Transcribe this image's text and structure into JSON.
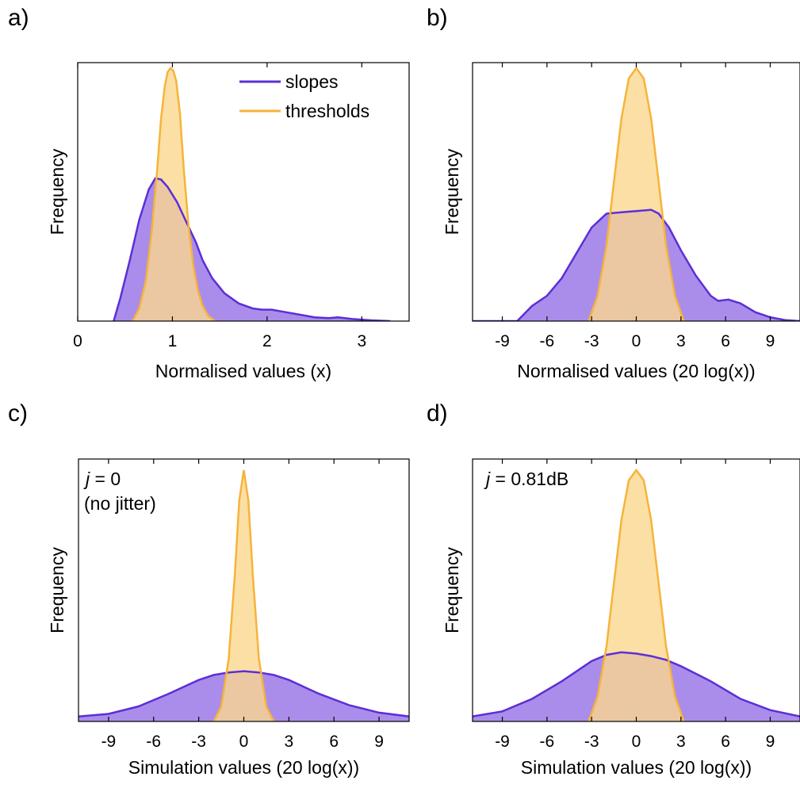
{
  "figure": {
    "panels": [
      {
        "letter": "a)",
        "xlabel": "Normalised values (x)",
        "ylabel": "Frequency",
        "annotation": null
      },
      {
        "letter": "b)",
        "xlabel": "Normalised values (20 log(x))",
        "ylabel": "Frequency",
        "annotation": null
      },
      {
        "letter": "c)",
        "xlabel": "Simulation values (20 log(x))",
        "ylabel": "Frequency",
        "annotation": {
          "symbol": "j",
          "rest": " = 0",
          "line2": "(no jitter)"
        }
      },
      {
        "letter": "d)",
        "xlabel": "Simulation values (20 log(x))",
        "ylabel": "Frequency",
        "annotation": {
          "symbol": "j",
          "rest": " = 0.81dB",
          "line2": ""
        }
      }
    ],
    "legend": {
      "placement": "top-right of panel a",
      "entries": [
        "slopes",
        "thresholds"
      ]
    },
    "colors": {
      "slopes_line": "#5b2fd6",
      "slopes_fill": "#9b79e8",
      "thresholds_line": "#f5b43a",
      "thresholds_fill": "#fbd78f",
      "overlap_fill": "#c7938a"
    }
  },
  "chart_data": [
    {
      "type": "area",
      "panel": "a",
      "xlim": [
        0,
        3.5
      ],
      "ylim": [
        0,
        1
      ],
      "xticks": [
        0,
        1,
        2,
        3
      ],
      "xlabel": "Normalised values (x)",
      "ylabel": "Frequency",
      "series": [
        {
          "name": "slopes",
          "x": [
            0.38,
            0.45,
            0.55,
            0.65,
            0.75,
            0.82,
            0.88,
            0.95,
            1.05,
            1.15,
            1.25,
            1.32,
            1.42,
            1.55,
            1.7,
            1.85,
            1.95,
            2.05,
            2.2,
            2.35,
            2.5,
            2.65,
            2.75,
            2.9,
            3.1,
            3.3
          ],
          "y": [
            0.0,
            0.09,
            0.24,
            0.4,
            0.52,
            0.565,
            0.56,
            0.53,
            0.47,
            0.39,
            0.31,
            0.24,
            0.17,
            0.11,
            0.07,
            0.05,
            0.045,
            0.045,
            0.035,
            0.025,
            0.015,
            0.012,
            0.015,
            0.008,
            0.003,
            0.0
          ]
        },
        {
          "name": "thresholds",
          "x": [
            0.58,
            0.65,
            0.72,
            0.78,
            0.84,
            0.88,
            0.92,
            0.95,
            0.98,
            1.01,
            1.04,
            1.08,
            1.12,
            1.17,
            1.22,
            1.27,
            1.32,
            1.38,
            1.45
          ],
          "y": [
            0.0,
            0.05,
            0.16,
            0.35,
            0.6,
            0.8,
            0.93,
            0.985,
            1.0,
            0.99,
            0.95,
            0.82,
            0.6,
            0.38,
            0.22,
            0.12,
            0.06,
            0.02,
            0.0
          ]
        }
      ]
    },
    {
      "type": "area",
      "panel": "b",
      "xlim": [
        -11,
        11
      ],
      "ylim": [
        0,
        1
      ],
      "xticks": [
        -9,
        -6,
        -3,
        0,
        3,
        6,
        9
      ],
      "xlabel": "Normalised values (20 log(x))",
      "ylabel": "Frequency",
      "series": [
        {
          "name": "slopes",
          "x": [
            -11,
            -8,
            -7,
            -6,
            -5,
            -4,
            -3,
            -2,
            -1,
            0,
            1,
            1.5,
            2.2,
            3,
            4,
            5,
            5.5,
            6.2,
            7,
            8,
            9,
            10,
            11
          ],
          "y": [
            0.0,
            0.0,
            0.06,
            0.1,
            0.17,
            0.27,
            0.37,
            0.425,
            0.43,
            0.435,
            0.44,
            0.425,
            0.37,
            0.28,
            0.18,
            0.1,
            0.08,
            0.085,
            0.07,
            0.035,
            0.015,
            0.004,
            0.0
          ]
        },
        {
          "name": "thresholds",
          "x": [
            -3.2,
            -2.6,
            -2.0,
            -1.5,
            -1.0,
            -0.5,
            0.0,
            0.5,
            1.0,
            1.5,
            2.0,
            2.6,
            3.2
          ],
          "y": [
            0.0,
            0.1,
            0.3,
            0.55,
            0.8,
            0.96,
            1.0,
            0.96,
            0.8,
            0.55,
            0.3,
            0.1,
            0.0
          ]
        }
      ]
    },
    {
      "type": "area",
      "panel": "c",
      "xlim": [
        -11,
        11
      ],
      "ylim": [
        0,
        1
      ],
      "xticks": [
        -9,
        -6,
        -3,
        0,
        3,
        6,
        9
      ],
      "xlabel": "Simulation values (20 log(x))",
      "ylabel": "Frequency",
      "series": [
        {
          "name": "slopes",
          "x": [
            -11,
            -9,
            -7,
            -5,
            -3,
            -2,
            -1,
            0,
            1,
            2,
            3,
            5,
            7,
            9,
            11
          ],
          "y": [
            0.02,
            0.03,
            0.06,
            0.11,
            0.165,
            0.185,
            0.195,
            0.2,
            0.195,
            0.185,
            0.165,
            0.11,
            0.065,
            0.035,
            0.02
          ]
        },
        {
          "name": "thresholds",
          "x": [
            -2.0,
            -1.5,
            -1.0,
            -0.6,
            -0.3,
            0.0,
            0.3,
            0.6,
            1.0,
            1.5,
            2.0
          ],
          "y": [
            0.0,
            0.06,
            0.25,
            0.58,
            0.88,
            1.0,
            0.88,
            0.58,
            0.25,
            0.06,
            0.0
          ]
        }
      ]
    },
    {
      "type": "area",
      "panel": "d",
      "xlim": [
        -11,
        11
      ],
      "ylim": [
        0,
        1
      ],
      "xticks": [
        -9,
        -6,
        -3,
        0,
        3,
        6,
        9
      ],
      "xlabel": "Simulation values (20 log(x))",
      "ylabel": "Frequency",
      "series": [
        {
          "name": "slopes",
          "x": [
            -11,
            -9,
            -7,
            -5,
            -3,
            -2,
            -1,
            0,
            1,
            2,
            3,
            5,
            7,
            9,
            11
          ],
          "y": [
            0.02,
            0.04,
            0.09,
            0.16,
            0.24,
            0.265,
            0.275,
            0.27,
            0.26,
            0.245,
            0.22,
            0.16,
            0.09,
            0.045,
            0.02
          ]
        },
        {
          "name": "thresholds",
          "x": [
            -3.2,
            -2.6,
            -2.0,
            -1.5,
            -1.0,
            -0.5,
            0.0,
            0.5,
            1.0,
            1.5,
            2.0,
            2.6,
            3.2
          ],
          "y": [
            0.0,
            0.1,
            0.3,
            0.55,
            0.8,
            0.96,
            1.0,
            0.96,
            0.8,
            0.55,
            0.3,
            0.1,
            0.0
          ]
        }
      ]
    }
  ]
}
